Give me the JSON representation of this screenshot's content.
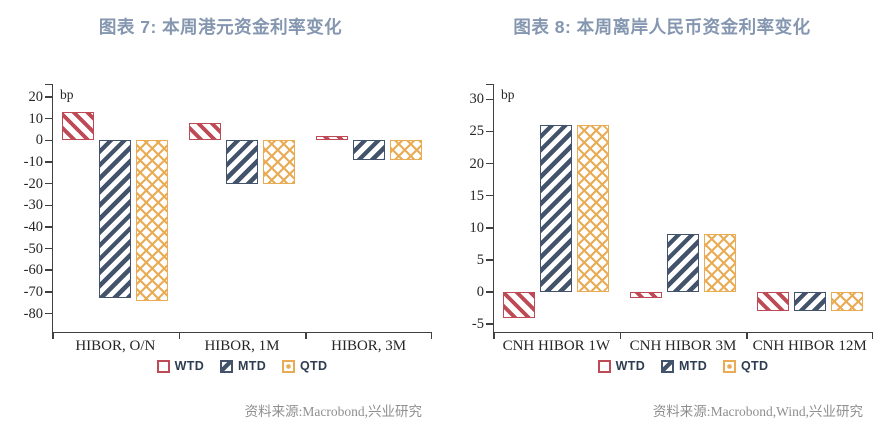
{
  "colors": {
    "title": "#8496B0",
    "wtd": "#BE4A56",
    "mtd": "#44536C",
    "qtd": "#E9AC55",
    "axis": "#404040",
    "ticktext": "#262626",
    "legendtext": "#2E3D52",
    "sourcetext": "#8F8F8F"
  },
  "chart_data": [
    {
      "type": "bar",
      "title": "图表 7: 本周港元资金利率变化",
      "unit_label": "bp",
      "categories": [
        "HIBOR, O/N",
        "HIBOR, 1M",
        "HIBOR, 3M"
      ],
      "series": [
        {
          "name": "WTD",
          "values": [
            13,
            8,
            2
          ],
          "color": "#BE4A56",
          "pattern": "diagonal-down-stripes"
        },
        {
          "name": "MTD",
          "values": [
            -73,
            -20,
            -9
          ],
          "color": "#44536C",
          "pattern": "diagonal-up-stripes"
        },
        {
          "name": "QTD",
          "values": [
            -74,
            -20,
            -9
          ],
          "color": "#E9AC55",
          "pattern": "crosshatch"
        }
      ],
      "ylim": [
        -89,
        26
      ],
      "yticks": [
        20,
        10,
        0,
        -10,
        -20,
        -30,
        -40,
        -50,
        -60,
        -70,
        -80
      ],
      "grid": false,
      "legend": [
        "WTD",
        "MTD",
        "QTD"
      ],
      "legend_position": "bottom",
      "source": "资料来源:Macrobond,兴业研究"
    },
    {
      "type": "bar",
      "title": "图表 8: 本周离岸人民币资金利率变化",
      "unit_label": "bp",
      "categories": [
        "CNH HIBOR 1W",
        "CNH HIBOR 3M",
        "CNH HIBOR 12M"
      ],
      "series": [
        {
          "name": "WTD",
          "values": [
            -4,
            -1,
            -3
          ],
          "color": "#BE4A56",
          "pattern": "diagonal-down-stripes"
        },
        {
          "name": "MTD",
          "values": [
            26,
            9,
            -3
          ],
          "color": "#44536C",
          "pattern": "diagonal-up-stripes"
        },
        {
          "name": "QTD",
          "values": [
            26,
            9,
            -3
          ],
          "color": "#E9AC55",
          "pattern": "crosshatch"
        }
      ],
      "ylim": [
        -6.4,
        32.4
      ],
      "yticks": [
        30,
        25,
        20,
        15,
        10,
        5,
        0,
        -5
      ],
      "grid": false,
      "legend": [
        "WTD",
        "MTD",
        "QTD"
      ],
      "legend_position": "bottom",
      "source": "资料来源:Macrobond,Wind,兴业研究"
    }
  ]
}
